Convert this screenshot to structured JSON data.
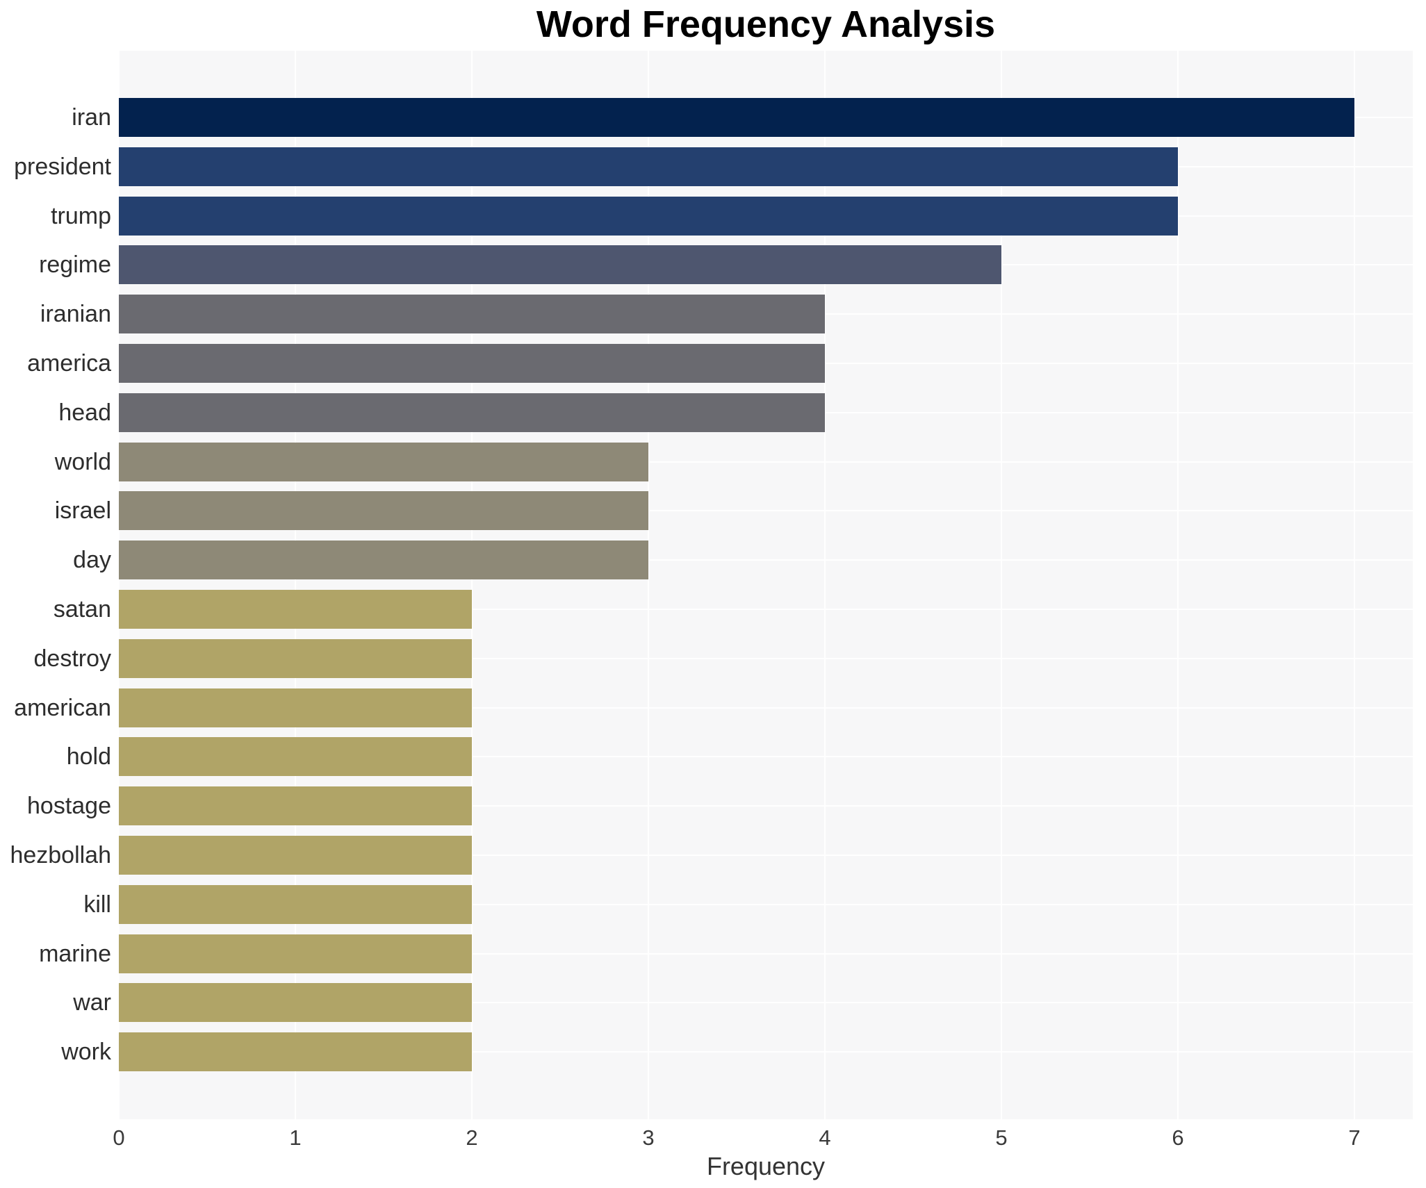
{
  "chart_data": {
    "type": "bar",
    "orientation": "horizontal",
    "title": "Word Frequency Analysis",
    "xlabel": "Frequency",
    "ylabel": "",
    "categories": [
      "iran",
      "president",
      "trump",
      "regime",
      "iranian",
      "america",
      "head",
      "world",
      "israel",
      "day",
      "satan",
      "destroy",
      "american",
      "hold",
      "hostage",
      "hezbollah",
      "kill",
      "marine",
      "war",
      "work"
    ],
    "values": [
      7,
      6,
      6,
      5,
      4,
      4,
      4,
      3,
      3,
      3,
      2,
      2,
      2,
      2,
      2,
      2,
      2,
      2,
      2,
      2
    ],
    "bar_colors": [
      "#03224e",
      "#24406f",
      "#24406f",
      "#4e566f",
      "#6a6a70",
      "#6a6a70",
      "#6a6a70",
      "#8e8977",
      "#8e8977",
      "#8e8977",
      "#b0a467",
      "#b0a467",
      "#b0a467",
      "#b0a467",
      "#b0a467",
      "#b0a467",
      "#b0a467",
      "#b0a467",
      "#b0a467",
      "#b0a467"
    ],
    "x_ticks": [
      "0",
      "1",
      "2",
      "3",
      "4",
      "5",
      "6",
      "7"
    ],
    "xlim": [
      0,
      7.33
    ],
    "grid": true,
    "legend": false,
    "colors": {
      "plot_background": "#f7f7f8",
      "page_background": "#ffffff",
      "gridline": "#ffffff",
      "title_text": "#000000",
      "label_text": "#2d2d2d",
      "tick_text": "#3a3a3a"
    }
  }
}
